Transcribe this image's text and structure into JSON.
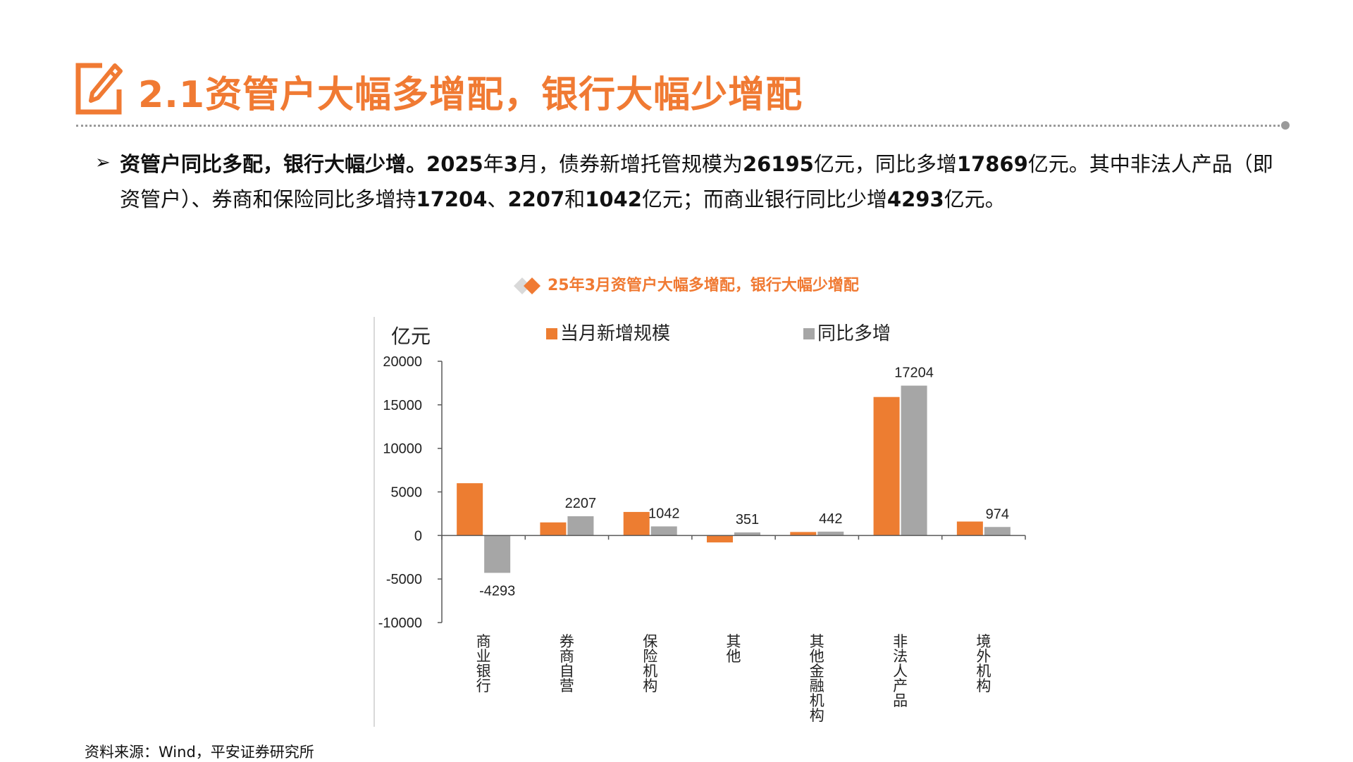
{
  "header": {
    "title": "2.1资管户大幅多增配，银行大幅少增配",
    "icon": "edit-pencil-icon"
  },
  "bullet": {
    "icon": "arrow-bullet-icon",
    "lead": "资管户同比多配，银行大幅少增。",
    "seg1": "2025",
    "seg2": "年",
    "seg3": "3",
    "seg4": "月，债券新增托管规模为",
    "seg5": "26195",
    "seg6": "亿元，同比多增",
    "seg7": "17869",
    "seg8": "亿元。其中非法人产品（即资管户）、券商和保险同比多增持",
    "seg9": "17204",
    "seg10": "、",
    "seg11": "2207",
    "seg12": "和",
    "seg13": "1042",
    "seg14": "亿元；而商业银行同比少增",
    "seg15": "4293",
    "seg16": "亿元。"
  },
  "chart_data": {
    "type": "bar",
    "title": "25年3月资管户大幅多增配，银行大幅少增配",
    "ylabel": "亿元",
    "ylim": [
      -10000,
      20000
    ],
    "yticks": [
      20000,
      15000,
      10000,
      5000,
      0,
      -5000,
      -10000
    ],
    "categories": [
      "商业银行",
      "券商自营",
      "保险机构",
      "其他",
      "其他金融机构",
      "非法人产品",
      "境外机构"
    ],
    "series": [
      {
        "name": "当月新增规模",
        "color": "#ED7D31",
        "values": [
          6000,
          1500,
          2700,
          -800,
          400,
          15900,
          1600
        ],
        "labels": [
          "",
          "",
          "",
          "",
          "",
          "",
          ""
        ]
      },
      {
        "name": "同比多增",
        "color": "#A6A6A6",
        "values": [
          -4293,
          2207,
          1042,
          351,
          442,
          17204,
          974
        ],
        "labels": [
          "-4293",
          "2207",
          "1042",
          "351",
          "442",
          "17204",
          "974"
        ]
      }
    ],
    "legend_position": "top",
    "grid": false
  },
  "footer": {
    "source": "资料来源：Wind，平安证券研究所"
  }
}
